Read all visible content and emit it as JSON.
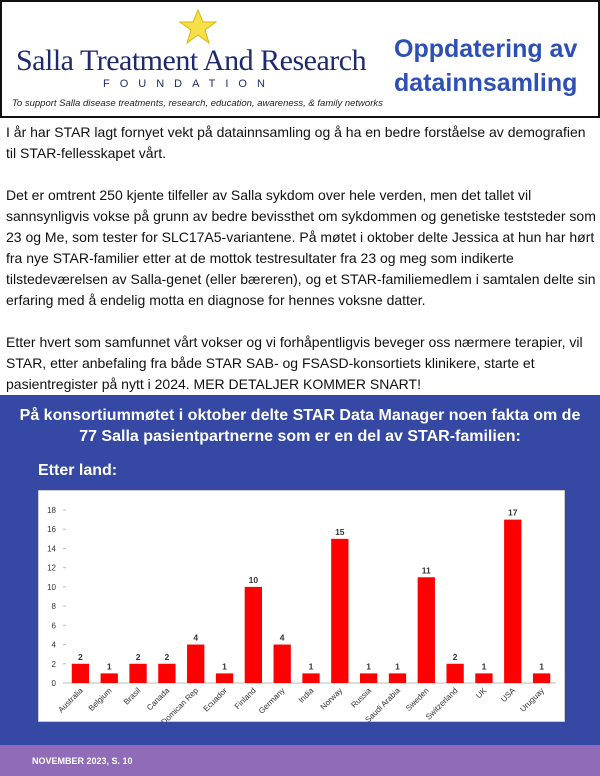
{
  "header": {
    "logo": {
      "name": "Salla Treatment And Research",
      "subtitle": "FOUNDATION",
      "tagline": "To support Salla disease treatments, research, education, awareness, & family networks"
    },
    "title": "Oppdatering av datainnsamling"
  },
  "body": {
    "paragraphs": [
      "I år har STAR lagt fornyet vekt på datainnsamling og å ha en bedre forståelse av demografien til STAR-fellesskapet vårt.",
      "Det er omtrent 250 kjente tilfeller av Salla sykdom over hele verden, men det tallet vil sannsynligvis vokse på grunn av bedre bevissthet om sykdommen og genetiske teststeder som 23 og Me, som tester for SLC17A5-variantene. På møtet i oktober delte Jessica at hun har hørt fra nye STAR-familier etter at de mottok testresultater fra 23 og meg som indikerte tilstedeværelsen av Salla-genet (eller bæreren), og et STAR-familiemedlem i samtalen delte sin erfaring med å endelig motta en diagnose for hennes voksne datter.",
      "Etter hvert som samfunnet vårt vokser og vi forhåpentligvis beveger oss nærmere terapier, vil STAR, etter anbefaling fra både STAR SAB- og FSASD-konsortiets klinikere, starte et pasientregister på nytt i 2024. MER DETALJER KOMMER SNART!"
    ]
  },
  "section": {
    "title": "På konsortiummøtet i oktober delte STAR Data Manager noen fakta om de 77 Salla pasientpartnerne som er en del av STAR-familien:",
    "subtitle": "Etter land:"
  },
  "chart": {
    "type": "bar",
    "color": "#ff0000",
    "categories": [
      "Australia",
      "Belgium",
      "Brasil",
      "Canada",
      "Domican Rep",
      "Ecuador",
      "Finland",
      "Germany",
      "India",
      "Norway",
      "Russia",
      "Saudi Arabia",
      "Sweden",
      "Switzerland",
      "UK",
      "USA",
      "Uruguay"
    ],
    "values": [
      2,
      1,
      2,
      2,
      4,
      1,
      10,
      4,
      1,
      15,
      1,
      1,
      11,
      2,
      1,
      17,
      1
    ],
    "ylim": [
      0,
      18
    ],
    "yticks": [
      0,
      2,
      4,
      6,
      8,
      10,
      12,
      14,
      16,
      18
    ]
  },
  "footer": {
    "text": "NOVEMBER 2023, S. 10"
  }
}
